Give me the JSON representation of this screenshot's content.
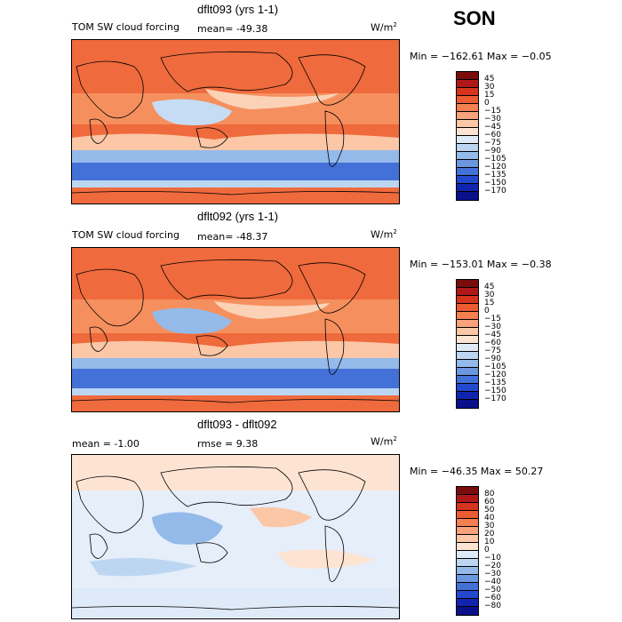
{
  "season": "SON",
  "panels": [
    {
      "title": "dflt093 (yrs 1-1)",
      "left_label": "TOM SW cloud forcing",
      "stat_label": "mean=  -49.38",
      "units": "W/m",
      "units_sup": "2",
      "minmax": "Min = −162.61  Max =   −0.05",
      "palette": "abs"
    },
    {
      "title": "dflt092 (yrs 1-1)",
      "left_label": "TOM SW cloud forcing",
      "stat_label": "mean=  -48.37",
      "units": "W/m",
      "units_sup": "2",
      "minmax": "Min = −153.01  Max =   −0.38",
      "palette": "abs"
    },
    {
      "title": "dflt093 - dflt092",
      "left_label": "mean =   -1.00",
      "stat_label": "rmse =    9.38",
      "units": "W/m",
      "units_sup": "2",
      "minmax": "Min = −46.35  Max =   50.27",
      "palette": "diff"
    }
  ],
  "colorbars": {
    "abs": {
      "labels": [
        "45",
        "30",
        "15",
        "0",
        "−15",
        "−30",
        "−45",
        "−60",
        "−75",
        "−90",
        "−105",
        "−120",
        "−135",
        "−150",
        "−170"
      ],
      "colors": [
        "#7a0c0c",
        "#b01818",
        "#d6341c",
        "#ec5b31",
        "#f58052",
        "#f9a27b",
        "#fbc7a6",
        "#fde4d2",
        "#dfeaf8",
        "#bcd6f2",
        "#94baea",
        "#6b96e0",
        "#4471d8",
        "#2249cf",
        "#1124b0",
        "#0a0f8a"
      ]
    },
    "diff": {
      "labels": [
        "80",
        "60",
        "50",
        "40",
        "30",
        "20",
        "10",
        "0",
        "−10",
        "−20",
        "−30",
        "−40",
        "−50",
        "−60",
        "−80"
      ],
      "colors": [
        "#7a0c0c",
        "#b01818",
        "#d6341c",
        "#ec5b31",
        "#f58052",
        "#f9a27b",
        "#fbc7a6",
        "#fde4d2",
        "#dfeaf8",
        "#bcd6f2",
        "#94baea",
        "#6b96e0",
        "#4471d8",
        "#2249cf",
        "#1124b0",
        "#0a0f8a"
      ]
    }
  }
}
